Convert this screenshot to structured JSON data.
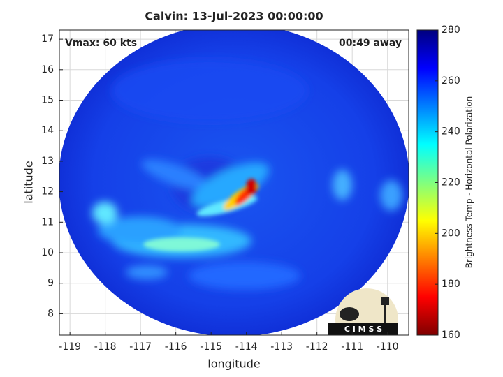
{
  "chart_data": {
    "type": "image",
    "title": "Calvin: 13-Jul-2023 00:00:00",
    "annotations": [
      "Vmax: 60 kts",
      "00:49 away"
    ],
    "xlabel": "longitude",
    "ylabel": "latitude",
    "xlim": [
      -119.3,
      -109.4
    ],
    "ylim": [
      7.3,
      17.3
    ],
    "xticks": [
      -119,
      -118,
      -117,
      -116,
      -115,
      -114,
      -113,
      -112,
      -111,
      -110
    ],
    "yticks": [
      8,
      9,
      10,
      11,
      12,
      13,
      14,
      15,
      16,
      17
    ],
    "grid": true,
    "colorbar": {
      "label": "Brightness Temp - Horizontal Polarization",
      "lim": [
        160,
        280
      ],
      "ticks": [
        160,
        180,
        200,
        220,
        240,
        260,
        280
      ]
    },
    "logo": "C I M S S"
  }
}
